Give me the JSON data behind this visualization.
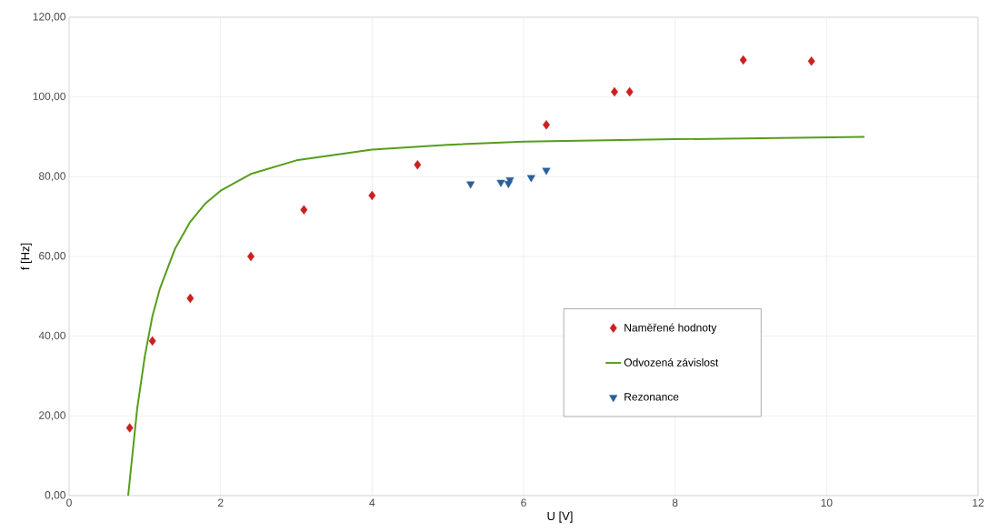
{
  "chart_data": {
    "type": "scatter",
    "xlabel": "U [V]",
    "ylabel": "f [Hz]",
    "xlim": [
      0,
      12
    ],
    "ylim": [
      0,
      120
    ],
    "xticks": [
      0,
      2,
      4,
      6,
      8,
      10,
      12
    ],
    "yticks": [
      {
        "value": 0,
        "label": "0,00"
      },
      {
        "value": 20,
        "label": "20,00"
      },
      {
        "value": 40,
        "label": "40,00"
      },
      {
        "value": 60,
        "label": "60,00"
      },
      {
        "value": 80,
        "label": "80,00"
      },
      {
        "value": 100,
        "label": "100,00"
      },
      {
        "value": 120,
        "label": "120,00"
      }
    ],
    "grid": true,
    "legend": "bottom right",
    "series": [
      {
        "name": "Naměřené hodnoty",
        "marker": "diamond",
        "color": "#c9211e",
        "x": [
          0.8,
          1.1,
          1.6,
          2.4,
          3.1,
          4.0,
          4.6,
          6.3,
          7.2,
          7.4,
          8.9,
          9.8
        ],
        "values": [
          17,
          38.8,
          49.5,
          60,
          71.7,
          75.3,
          83,
          93,
          101.3,
          101.3,
          109.3,
          109
        ]
      },
      {
        "name": "Odvozená závislost",
        "type": "line",
        "marker": "none",
        "line_style": "solid",
        "color": "#579d1c",
        "x": [
          0.78,
          0.9,
          1.0,
          1.1,
          1.2,
          1.4,
          1.6,
          1.8,
          2.0,
          2.4,
          3.0,
          4.0,
          5.0,
          6.0,
          8.0,
          10.5
        ],
        "values": [
          0,
          22,
          35,
          45,
          52,
          62,
          68.7,
          73.3,
          76.5,
          80.7,
          84.1,
          86.8,
          88,
          88.8,
          89.4,
          90
        ]
      },
      {
        "name": "Rezonance",
        "marker": "triangle down",
        "color": "#2a6099",
        "x": [
          5.3,
          5.7,
          5.8,
          5.82,
          6.1,
          6.3
        ],
        "values": [
          78.2,
          78.6,
          78.3,
          79.2,
          79.8,
          81.6
        ]
      }
    ]
  }
}
